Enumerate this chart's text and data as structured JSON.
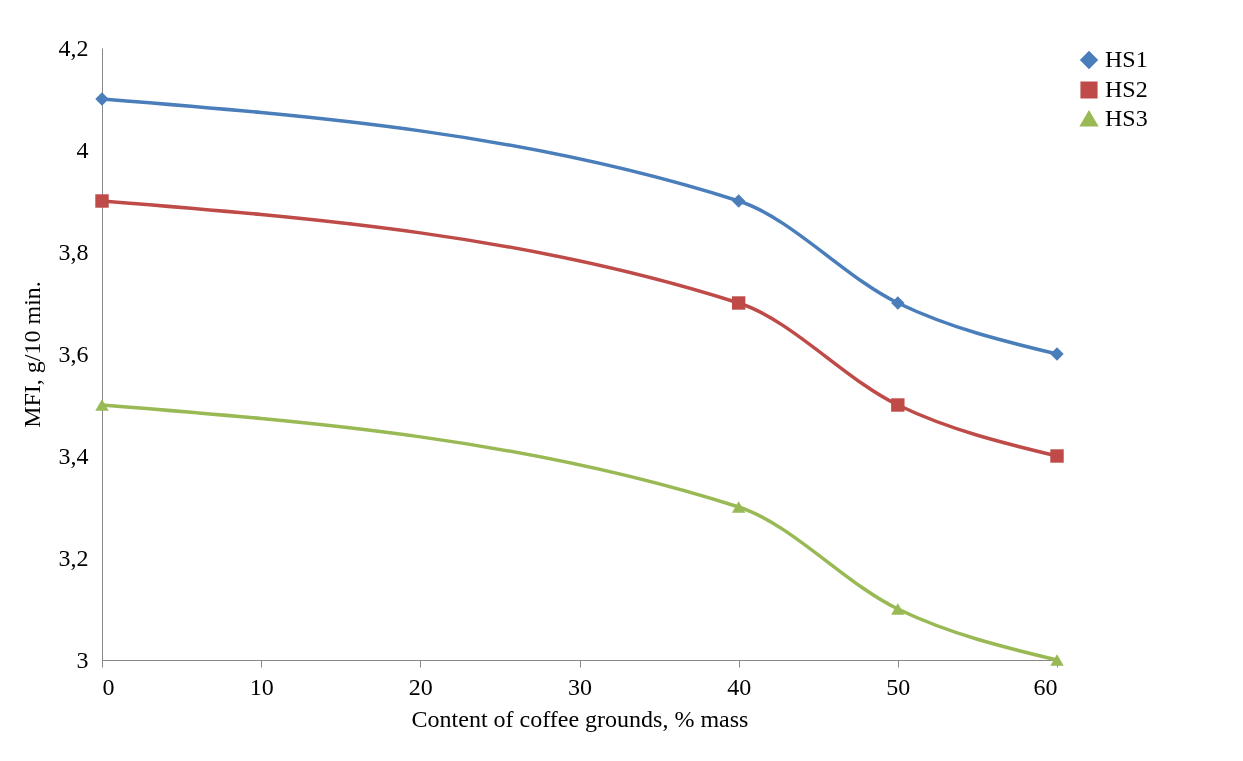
{
  "chart_data": {
    "type": "line",
    "xlabel": "Content of coffee grounds, % mass",
    "ylabel": "MFI, g/10 min.",
    "x": [
      0,
      40,
      50,
      60
    ],
    "series": [
      {
        "name": "HS1",
        "color": "#4a7ebb",
        "marker": "diamond",
        "values": [
          4.1,
          3.9,
          3.7,
          3.6
        ]
      },
      {
        "name": "HS2",
        "color": "#be4b48",
        "marker": "square",
        "values": [
          3.9,
          3.7,
          3.5,
          3.4
        ]
      },
      {
        "name": "HS3",
        "color": "#98b954",
        "marker": "triangle",
        "values": [
          3.5,
          3.3,
          3.1,
          3.0
        ]
      }
    ],
    "xlim": [
      0,
      60
    ],
    "xticks": [
      0,
      10,
      20,
      30,
      40,
      50,
      60
    ],
    "ylim": [
      3,
      4.2
    ],
    "yticks": [
      3,
      {
        "value": 3.2,
        "label": "3,2"
      },
      {
        "value": 3.4,
        "label": "3,4"
      },
      {
        "value": 3.6,
        "label": "3,6"
      },
      {
        "value": 3.8,
        "label": "3,8"
      },
      4,
      {
        "value": 4.2,
        "label": "4,2"
      }
    ],
    "grid": false,
    "legend": "right",
    "line_style": "solid"
  }
}
